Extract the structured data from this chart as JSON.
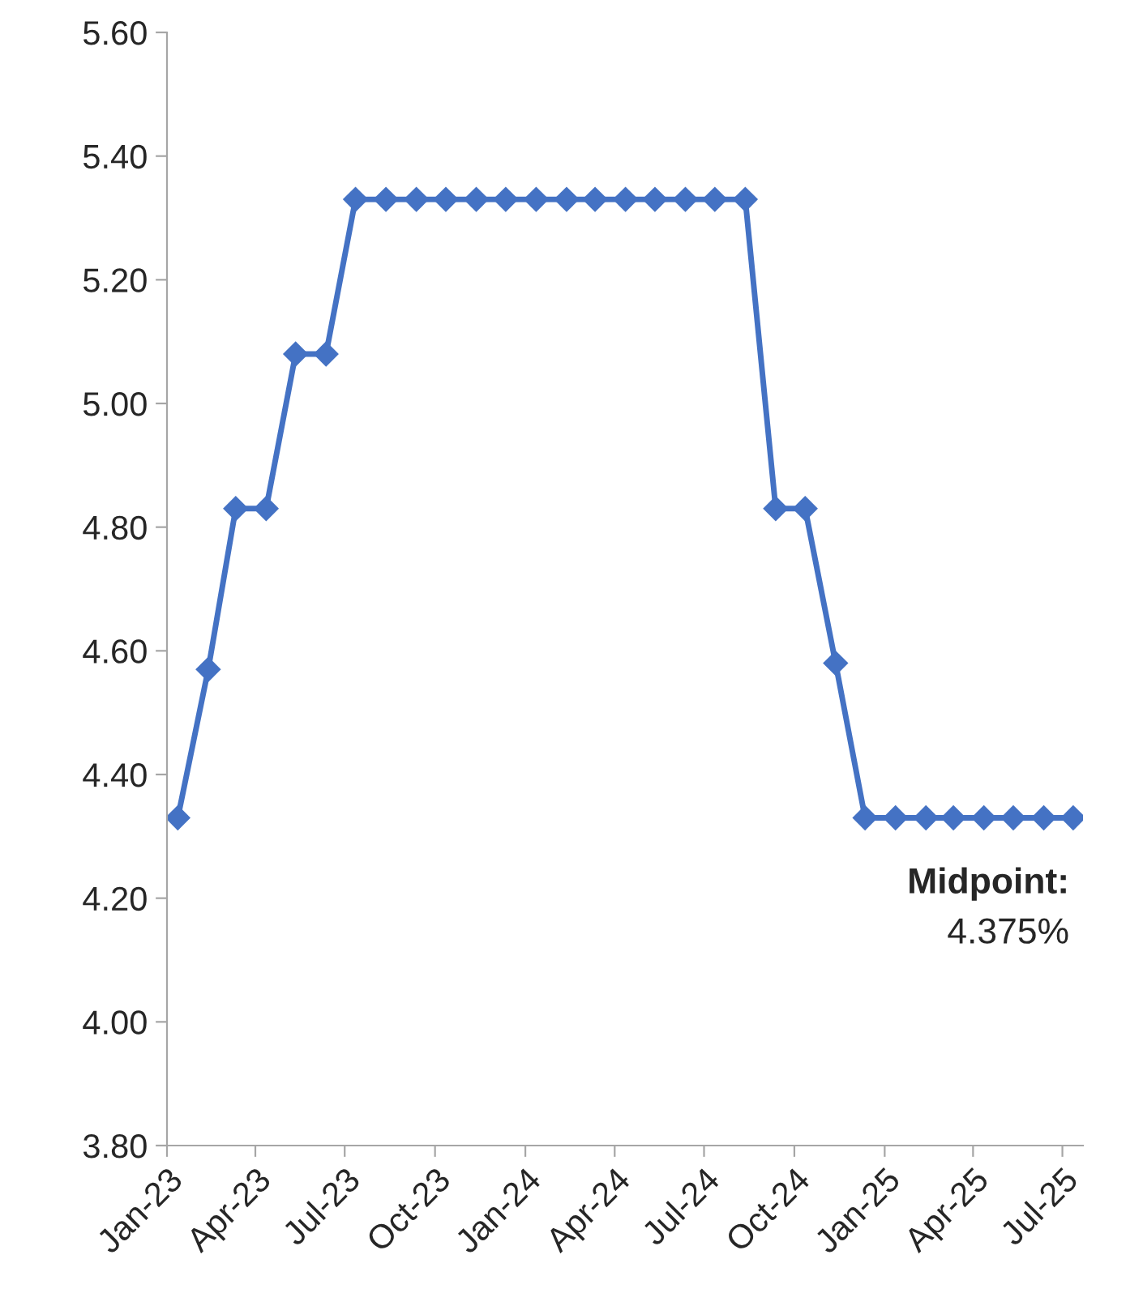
{
  "chart_data": {
    "type": "line",
    "x": [
      "2023-01-12",
      "2023-02-12",
      "2023-03-12",
      "2023-04-12",
      "2023-05-12",
      "2023-06-12",
      "2023-07-12",
      "2023-08-12",
      "2023-09-12",
      "2023-10-12",
      "2023-11-12",
      "2023-12-12",
      "2024-01-12",
      "2024-02-12",
      "2024-03-12",
      "2024-04-12",
      "2024-05-12",
      "2024-06-12",
      "2024-07-12",
      "2024-08-12",
      "2024-09-12",
      "2024-10-12",
      "2024-11-12",
      "2024-12-12",
      "2025-01-12",
      "2025-02-12",
      "2025-03-12",
      "2025-04-12",
      "2025-05-12",
      "2025-06-12",
      "2025-07-12"
    ],
    "series": [
      {
        "color": "#4472c4",
        "values": [
          4.33,
          4.57,
          4.83,
          4.83,
          5.08,
          5.08,
          5.33,
          5.33,
          5.33,
          5.33,
          5.33,
          5.33,
          5.33,
          5.33,
          5.33,
          5.33,
          5.33,
          5.33,
          5.33,
          5.33,
          4.83,
          4.83,
          4.58,
          4.33,
          4.33,
          4.33,
          4.33,
          4.33,
          4.33,
          4.33,
          4.33
        ]
      }
    ],
    "xlim": [
      "2023-01-01",
      "2025-07-22"
    ],
    "xticks": [
      {
        "value": "2023-01-01",
        "label": "Jan-23"
      },
      {
        "value": "2023-04-01",
        "label": "Apr-23"
      },
      {
        "value": "2023-07-01",
        "label": "Jul-23"
      },
      {
        "value": "2023-10-01",
        "label": "Oct-23"
      },
      {
        "value": "2024-01-01",
        "label": "Jan-24"
      },
      {
        "value": "2024-04-01",
        "label": "Apr-24"
      },
      {
        "value": "2024-07-01",
        "label": "Jul-24"
      },
      {
        "value": "2024-10-01",
        "label": "Oct-24"
      },
      {
        "value": "2025-01-01",
        "label": "Jan-25"
      },
      {
        "value": "2025-04-01",
        "label": "Apr-25"
      },
      {
        "value": "2025-07-01",
        "label": "Jul-25"
      }
    ],
    "ylim": [
      3.8,
      5.6
    ],
    "yticks": [
      {
        "value": 3.8,
        "label": "3.80"
      },
      {
        "value": 4.0,
        "label": "4.00"
      },
      {
        "value": 4.2,
        "label": "4.20"
      },
      {
        "value": 4.4,
        "label": "4.40"
      },
      {
        "value": 4.6,
        "label": "4.60"
      },
      {
        "value": 4.8,
        "label": "4.80"
      },
      {
        "value": 5.0,
        "label": "5.00"
      },
      {
        "value": 5.2,
        "label": "5.20"
      },
      {
        "value": 5.4,
        "label": "5.40"
      },
      {
        "value": 5.6,
        "label": "5.60"
      }
    ],
    "annotations": [
      "Midpoint:",
      "4.375%"
    ],
    "marker": "diamond",
    "line_style": "solid",
    "grid": false,
    "legend": false
  }
}
